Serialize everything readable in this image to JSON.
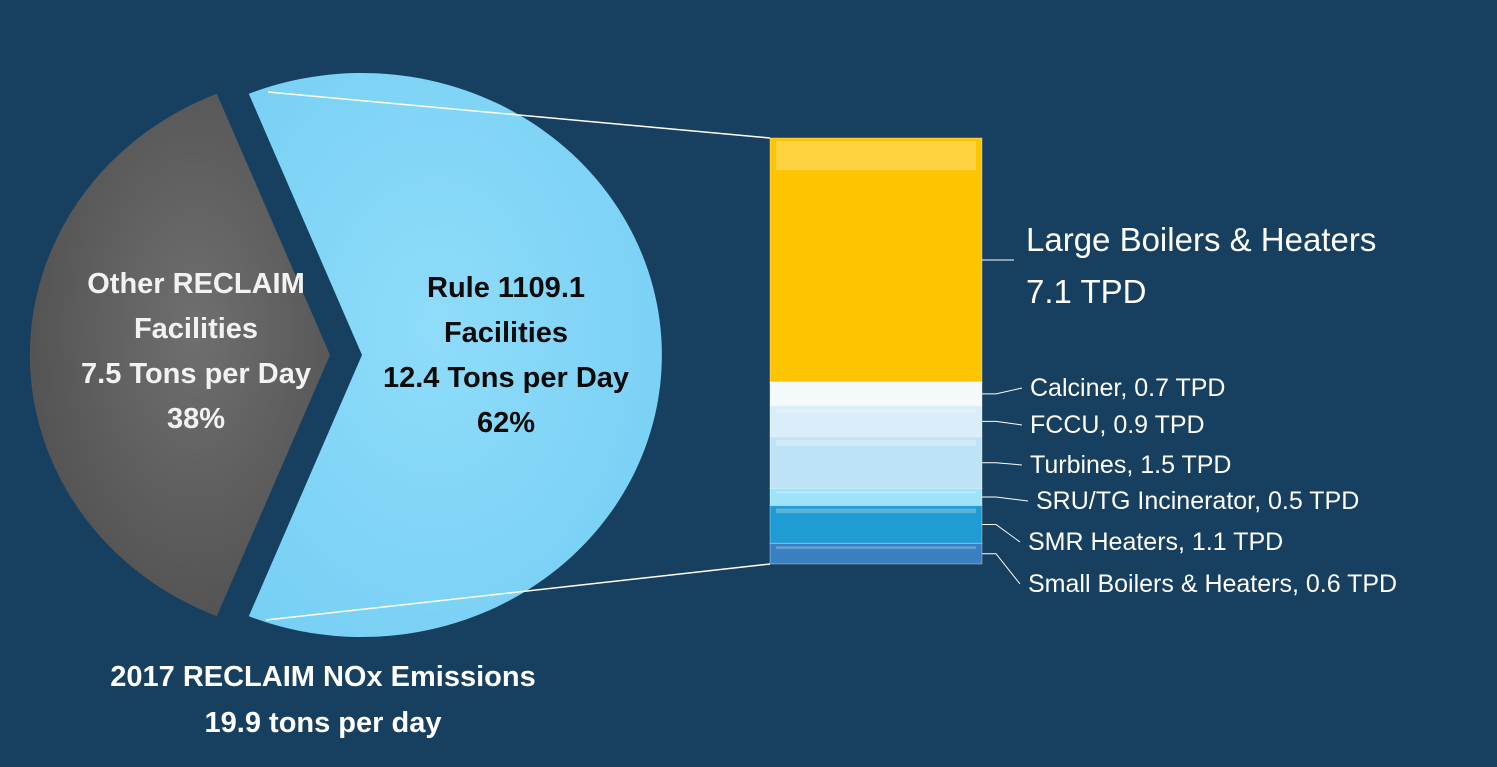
{
  "colors": {
    "background": "#173f5f",
    "other_slice": "#595959",
    "rule_slice": "#7fd6f8",
    "connector": "#ffffff"
  },
  "chart_data": [
    {
      "type": "pie",
      "title": "2017 RECLAIM NOx Emissions",
      "subtitle": "19.9 tons per day",
      "slices": [
        {
          "key": "other",
          "lines": [
            "Other RECLAIM",
            "Facilities",
            "7.5 Tons per Day",
            "38%"
          ],
          "value": 7.5,
          "percent": 38,
          "color": "#595959",
          "text_color": "#f2f2f2"
        },
        {
          "key": "rule",
          "lines": [
            "Rule 1109.1",
            "Facilities",
            "12.4 Tons per Day",
            "62%"
          ],
          "value": 12.4,
          "percent": 62,
          "color": "#7fd6f8",
          "text_color": "#0a0a0a"
        }
      ]
    },
    {
      "type": "bar",
      "stacked": true,
      "unit": "TPD",
      "segments": [
        {
          "label": "Large Boilers & Heaters",
          "value_label": "7.1 TPD",
          "value": 7.1,
          "color": "#ffc400"
        },
        {
          "label": "Calciner, 0.7 TPD",
          "value": 0.7,
          "color": "#f4f9fc"
        },
        {
          "label": "FCCU, 0.9 TPD",
          "value": 0.9,
          "color": "#d9eef9"
        },
        {
          "label": "Turbines, 1.5 TPD",
          "value": 1.5,
          "color": "#bfe3f6"
        },
        {
          "label": "SRU/TG Incinerator, 0.5 TPD",
          "value": 0.5,
          "color": "#9fe3fb"
        },
        {
          "label": "SMR Heaters, 1.1 TPD",
          "value": 1.1,
          "color": "#1f9cd3"
        },
        {
          "label": "Small Boilers & Heaters, 0.6 TPD",
          "value": 0.6,
          "color": "#3a7fc0"
        }
      ]
    }
  ]
}
